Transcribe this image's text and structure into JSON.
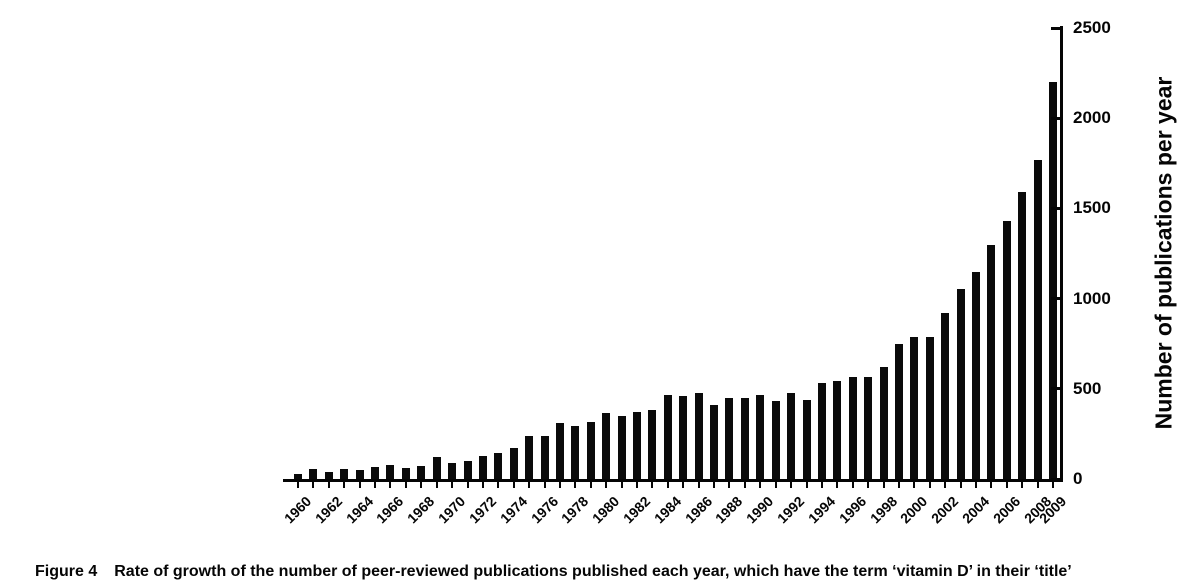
{
  "figure_caption": {
    "label": "Figure 4",
    "text": "Rate of growth of the number of peer-reviewed publications published each year, which have the term ‘vitamin D’ in their ‘title’"
  },
  "chart_data": {
    "type": "bar",
    "title": "",
    "xlabel": "",
    "ylabel": "Number of publications per year",
    "ylim": [
      0,
      2500
    ],
    "yticks": [
      0,
      500,
      1000,
      1500,
      2000,
      2500
    ],
    "y_axis_side": "right",
    "grid": false,
    "legend": "none",
    "bar_color": "#0a0a0a",
    "background_color": "#ffffff",
    "xtick_labels": [
      "1960",
      "1962",
      "1964",
      "1966",
      "1968",
      "1970",
      "1972",
      "1974",
      "1976",
      "1978",
      "1980",
      "1982",
      "1984",
      "1986",
      "1988",
      "1990",
      "1992",
      "1994",
      "1996",
      "1998",
      "2000",
      "2002",
      "2004",
      "2006",
      "2008",
      "2009"
    ],
    "categories": [
      "1960",
      "1961",
      "1962",
      "1963",
      "1964",
      "1965",
      "1966",
      "1967",
      "1968",
      "1969",
      "1970",
      "1971",
      "1972",
      "1973",
      "1974",
      "1975",
      "1976",
      "1977",
      "1978",
      "1979",
      "1980",
      "1981",
      "1982",
      "1983",
      "1984",
      "1985",
      "1986",
      "1987",
      "1988",
      "1989",
      "1990",
      "1991",
      "1992",
      "1993",
      "1994",
      "1995",
      "1996",
      "1997",
      "1998",
      "1999",
      "2000",
      "2001",
      "2002",
      "2003",
      "2004",
      "2005",
      "2006",
      "2007",
      "2008",
      "2009"
    ],
    "values": [
      30,
      55,
      40,
      55,
      50,
      65,
      78,
      62,
      72,
      120,
      87,
      100,
      125,
      145,
      170,
      240,
      238,
      310,
      295,
      315,
      365,
      352,
      370,
      385,
      465,
      458,
      478,
      408,
      448,
      450,
      467,
      433,
      477,
      437,
      535,
      542,
      565,
      567,
      620,
      748,
      790,
      785,
      920,
      1055,
      1150,
      1300,
      1430,
      1590,
      1770,
      2200
    ]
  }
}
